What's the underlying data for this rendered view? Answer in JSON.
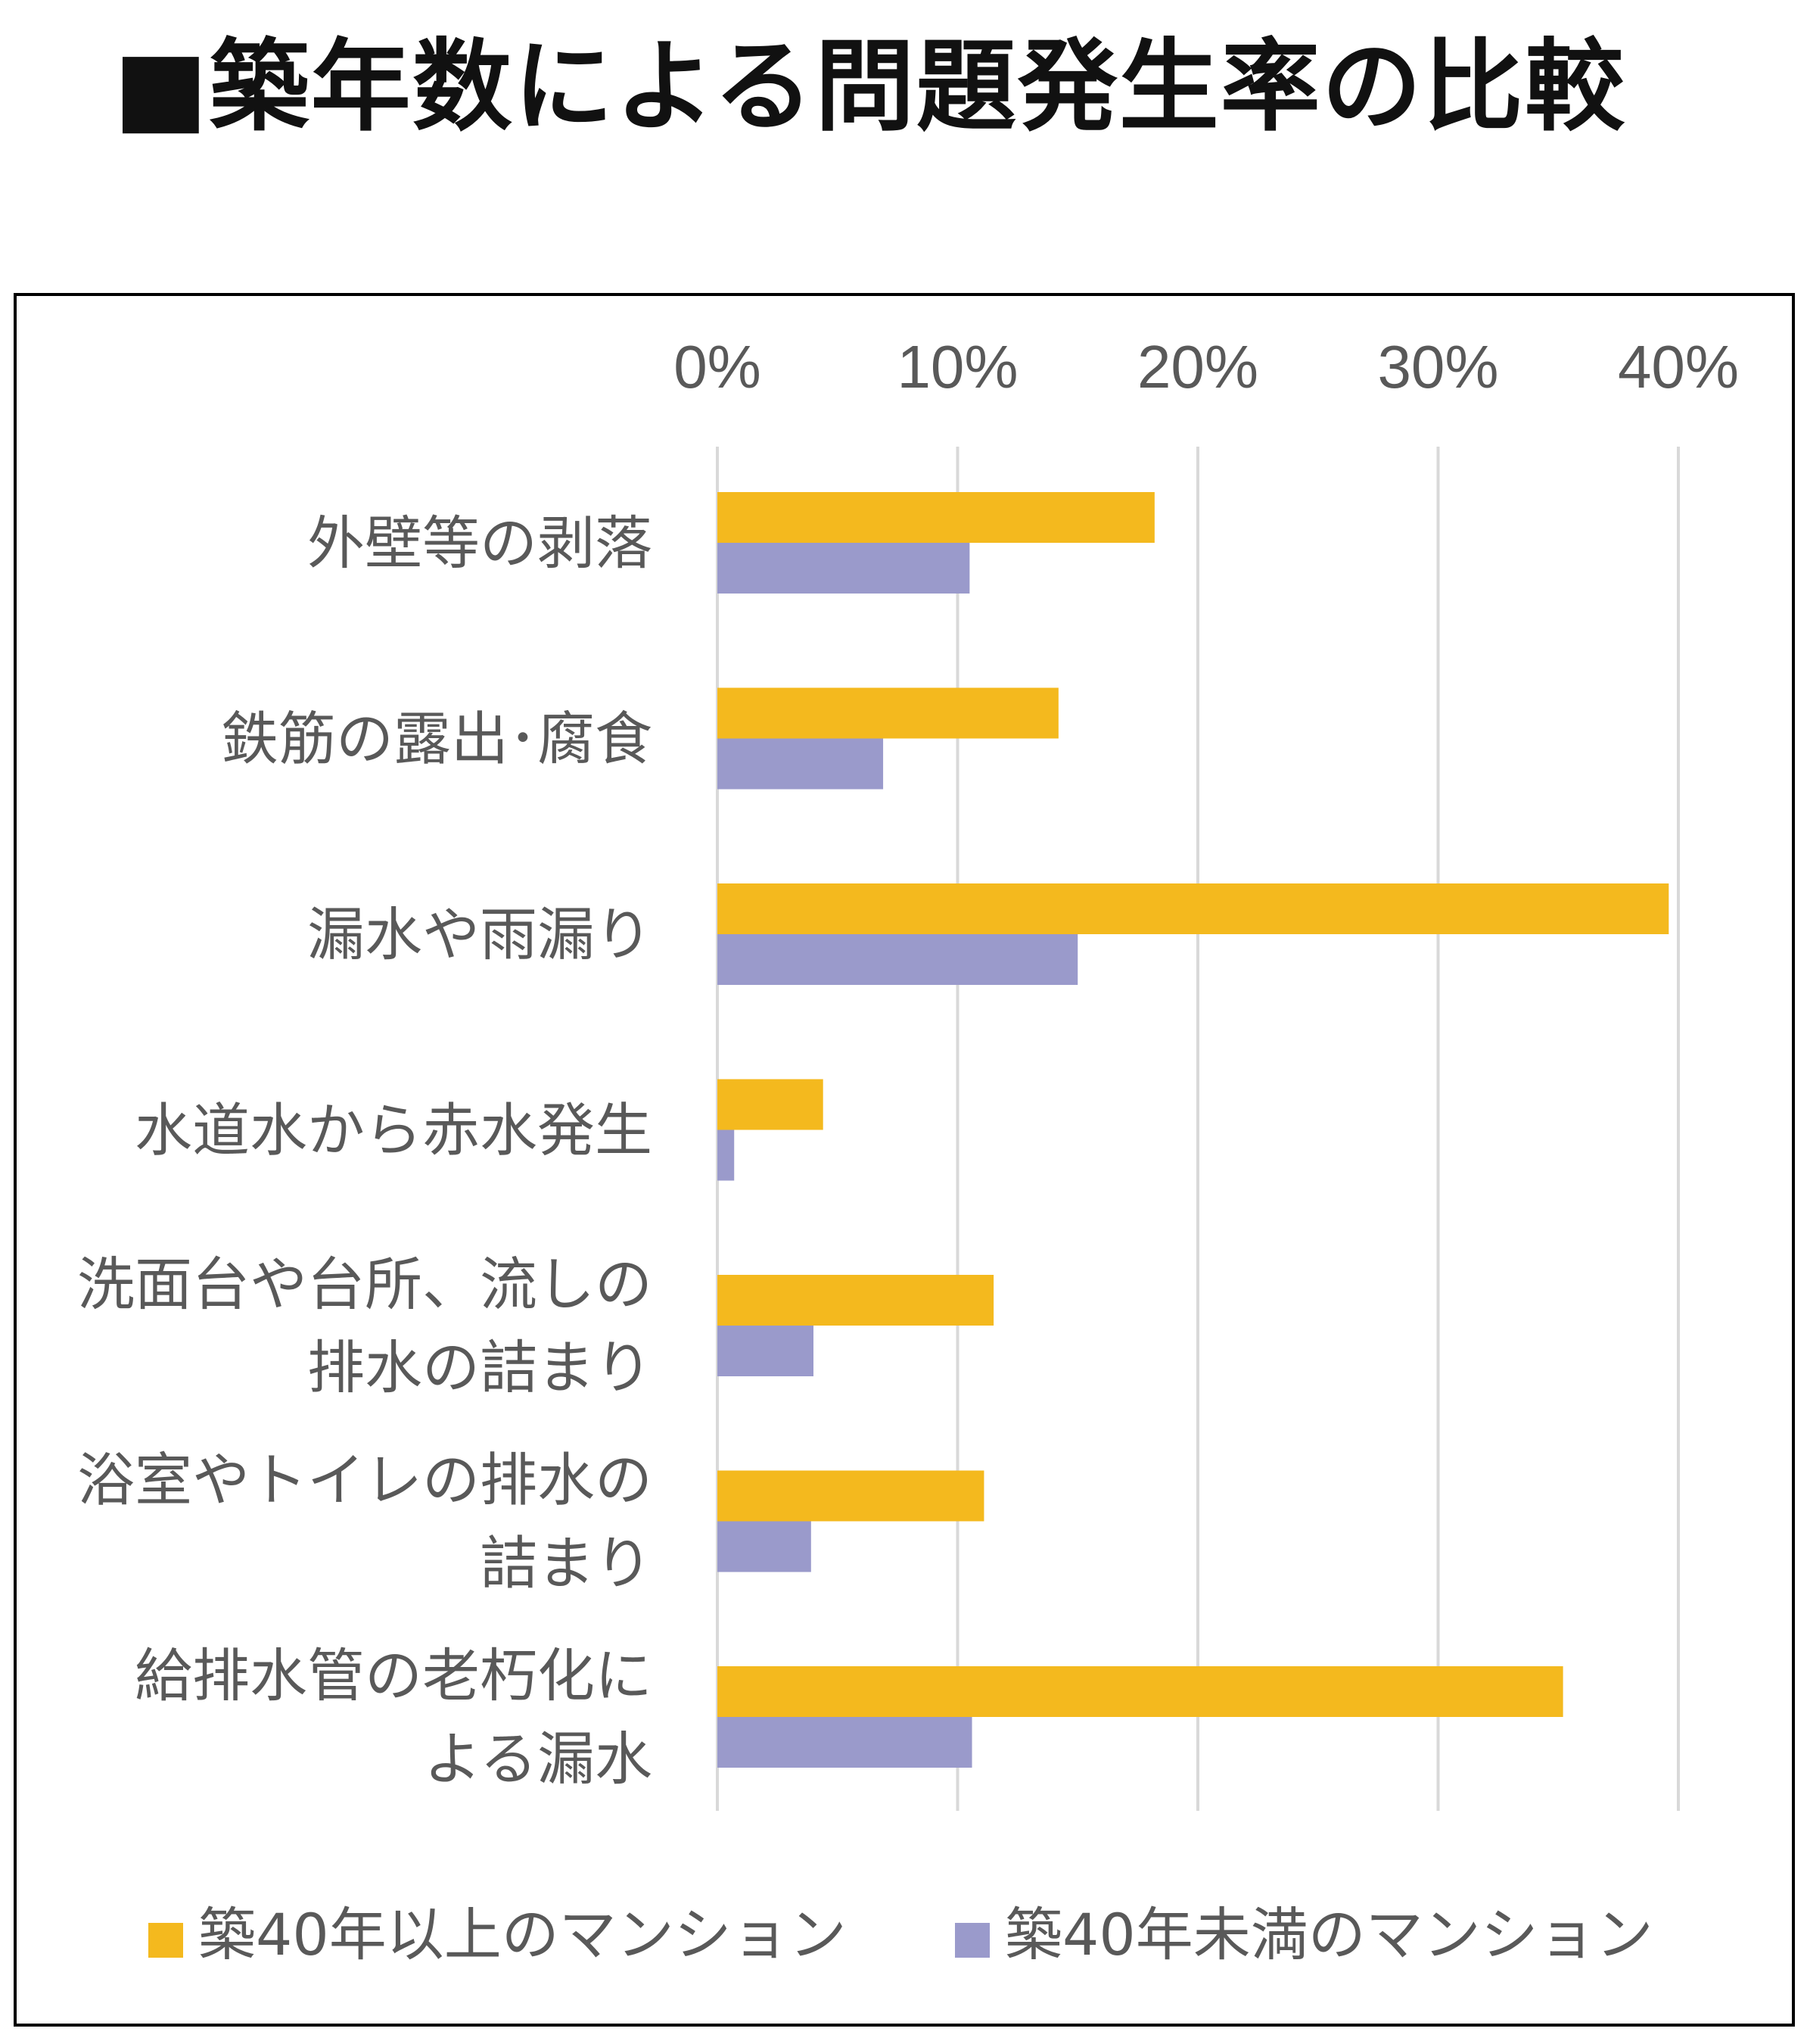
{
  "title": "■築年数による問題発生率の比較",
  "colors": {
    "series_over_40": "#F4B91E",
    "series_under_40": "#9A9ACB",
    "gridline": "#D9D9D9",
    "text": "#595959",
    "frame": "#000000"
  },
  "chart_data": {
    "type": "bar",
    "orientation": "horizontal",
    "title": "",
    "xlabel": "",
    "ylabel": "",
    "xlim": [
      0,
      0.4
    ],
    "x_ticks": [
      "0%",
      "10%",
      "20%",
      "30%",
      "40%"
    ],
    "x_axis_position": "top",
    "grid": true,
    "legend_position": "bottom",
    "categories": [
      [
        "外壁等の剥落"
      ],
      [
        "鉄筋の露出･腐食"
      ],
      [
        "漏水や雨漏り"
      ],
      [
        "水道水から赤水発生"
      ],
      [
        "洗面台や台所、流しの",
        "排水の詰まり"
      ],
      [
        "浴室やトイレの排水の",
        "詰まり"
      ],
      [
        "給排水管の老朽化に",
        "よる漏水"
      ]
    ],
    "series": [
      {
        "name": "築40年以上のマンション",
        "values": [
          0.182,
          0.142,
          0.396,
          0.044,
          0.115,
          0.111,
          0.352
        ]
      },
      {
        "name": "築40年未満のマンション",
        "values": [
          0.105,
          0.069,
          0.15,
          0.007,
          0.04,
          0.039,
          0.106
        ]
      }
    ]
  }
}
